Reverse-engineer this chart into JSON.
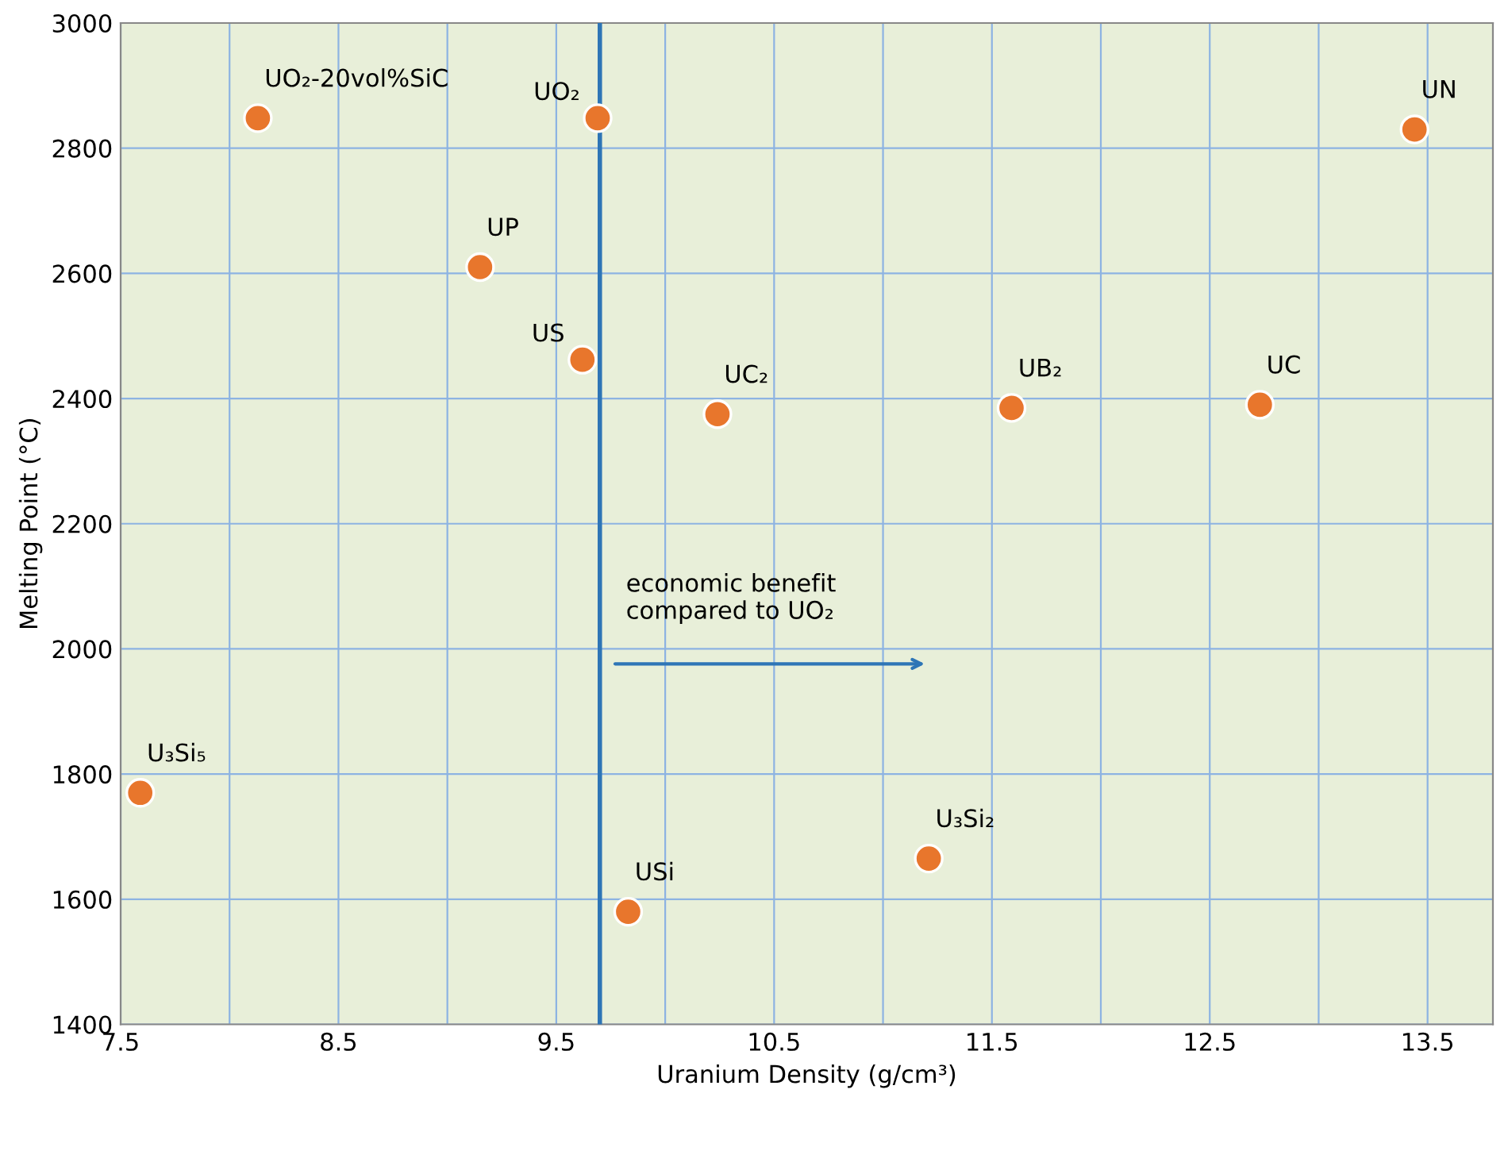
{
  "chart_data": {
    "type": "scatter",
    "xlabel": "Uranium Density (g/cm³)",
    "ylabel": "Melting Point (°C)",
    "x": [
      8.13,
      9.69,
      13.44,
      9.15,
      9.62,
      10.24,
      11.59,
      12.73,
      7.59,
      11.21,
      9.83
    ],
    "series": [
      {
        "color": "#e8762c",
        "values": [
          2848,
          2848,
          2830,
          2610,
          2462,
          2375,
          2385,
          2390,
          1770,
          1665,
          1580
        ]
      }
    ],
    "value_labels": [
      "UO₂-20vol%SiC",
      "UO₂",
      "UN",
      "UP",
      "US",
      "UC₂",
      "UB₂",
      "UC",
      "U₃Si₅",
      "U₃Si₂",
      "USi"
    ],
    "xlim": [
      7.5,
      13.8
    ],
    "xticks": [
      7.5,
      {
        "value": 8.0,
        "label": null
      },
      8.5,
      {
        "value": 9.0,
        "label": null
      },
      9.5,
      {
        "value": 10.0,
        "label": null
      },
      10.5,
      {
        "value": 11.0,
        "label": null
      },
      11.5,
      {
        "value": 12.0,
        "label": null
      },
      12.5,
      {
        "value": 13.0,
        "label": null
      },
      13.5
    ],
    "ylim": [
      1400,
      3000
    ],
    "yticks": [
      1400,
      1600,
      1800,
      2000,
      2200,
      2400,
      2600,
      2800,
      3000
    ],
    "grid": true,
    "marker": "circle",
    "ref_lines": [
      {
        "axis": "x",
        "value": 9.7,
        "color": "#2e75b6"
      }
    ],
    "annotations": [
      "economic benefit\ncompared to UO₂"
    ]
  }
}
